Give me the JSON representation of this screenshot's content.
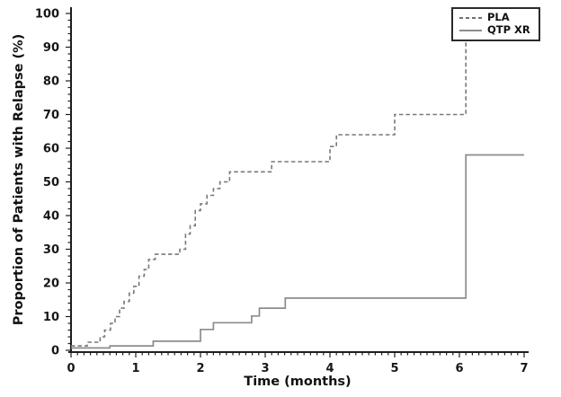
{
  "chart_data": {
    "type": "line",
    "subtype": "kaplan-meier-step",
    "title": "",
    "xlabel": "Time (months)",
    "ylabel": "Proportion of Patients with Relapse (%)",
    "xlim": [
      0,
      7
    ],
    "ylim": [
      0,
      100
    ],
    "x_ticks": [
      "0",
      "1",
      "2",
      "3",
      "4",
      "5",
      "6",
      "7"
    ],
    "x_minor_step": 0.1,
    "y_ticks": [
      "0",
      "10",
      "20",
      "30",
      "40",
      "50",
      "60",
      "70",
      "80",
      "90",
      "100"
    ],
    "y_minor_step": 2,
    "grid": false,
    "legend": {
      "position": "top-right",
      "entries": [
        {
          "label": "PLA",
          "style": "dashed",
          "color": "#797979"
        },
        {
          "label": "QTP XR",
          "style": "solid",
          "color": "#8c8c8c"
        }
      ]
    },
    "series": [
      {
        "name": "PLA",
        "style": "dashed",
        "color": "#797979",
        "width": 1.6,
        "end_x": 6.1,
        "note": "step values = [time_months, cumulative_relapse_%]; final rise at 6.1 months climbs to ~92% with its top partially hidden behind the legend box",
        "points": [
          [
            0,
            1.3
          ],
          [
            0.25,
            2.4
          ],
          [
            0.45,
            4
          ],
          [
            0.52,
            6
          ],
          [
            0.61,
            8
          ],
          [
            0.68,
            10
          ],
          [
            0.75,
            12.5
          ],
          [
            0.82,
            14.5
          ],
          [
            0.9,
            17
          ],
          [
            0.97,
            19
          ],
          [
            1.05,
            22
          ],
          [
            1.13,
            24
          ],
          [
            1.2,
            27
          ],
          [
            1.3,
            28.5
          ],
          [
            1.68,
            30
          ],
          [
            1.77,
            34.5
          ],
          [
            1.84,
            37
          ],
          [
            1.92,
            41.5
          ],
          [
            2.0,
            43.5
          ],
          [
            2.1,
            46
          ],
          [
            2.2,
            48
          ],
          [
            2.3,
            50
          ],
          [
            2.45,
            53
          ],
          [
            3.1,
            56
          ],
          [
            4.0,
            60.5
          ],
          [
            4.1,
            64
          ],
          [
            5.0,
            70
          ],
          [
            6.1,
            92
          ]
        ]
      },
      {
        "name": "QTP XR",
        "style": "solid",
        "color": "#8c8c8c",
        "width": 1.7,
        "end_x": 7,
        "note": "step values = [time_months, cumulative_relapse_%]",
        "points": [
          [
            0,
            0.7
          ],
          [
            0.6,
            1.3
          ],
          [
            1.27,
            2.7
          ],
          [
            2.0,
            6.2
          ],
          [
            2.2,
            8.2
          ],
          [
            2.79,
            10.2
          ],
          [
            2.91,
            12.5
          ],
          [
            3.31,
            15.5
          ],
          [
            6.1,
            58
          ]
        ]
      }
    ]
  }
}
